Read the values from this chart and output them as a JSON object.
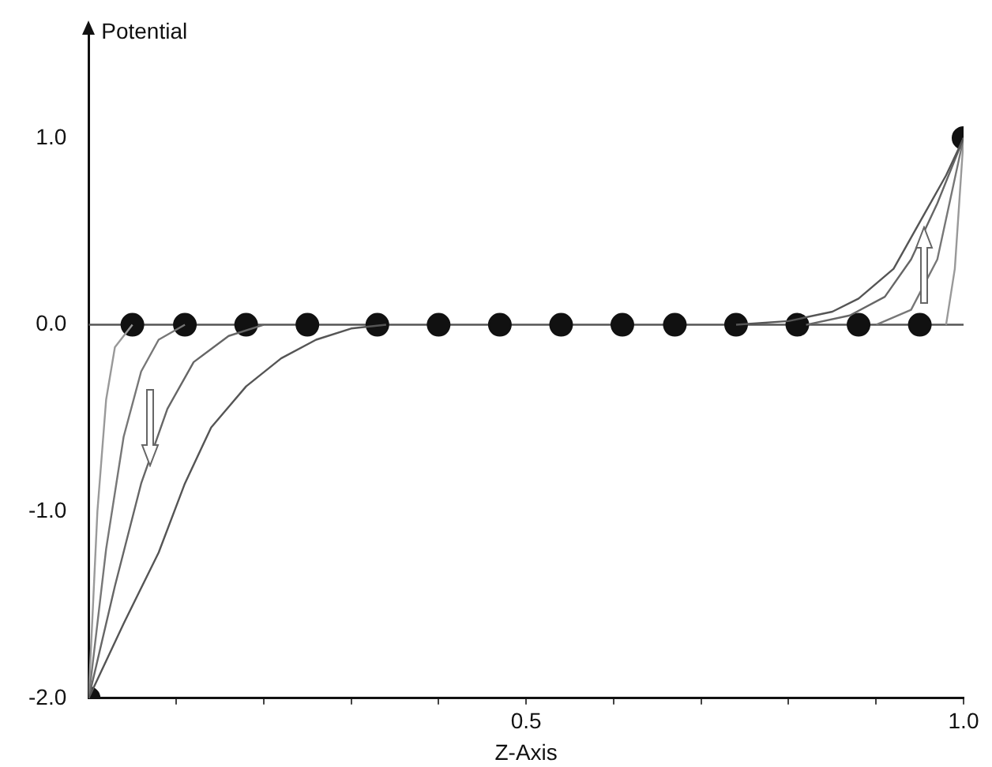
{
  "chart_data": {
    "type": "line",
    "xlabel": "Z-Axis",
    "ylabel": "Potential",
    "xlim": [
      0,
      1
    ],
    "ylim": [
      -2,
      1.55
    ],
    "xticks": [
      {
        "value": 0.1,
        "label": null
      },
      {
        "value": 0.2,
        "label": null
      },
      {
        "value": 0.3,
        "label": null
      },
      {
        "value": 0.4,
        "label": null
      },
      {
        "value": 0.5,
        "label": "0.5"
      },
      {
        "value": 0.6,
        "label": null
      },
      {
        "value": 0.7,
        "label": null
      },
      {
        "value": 0.8,
        "label": null
      },
      {
        "value": 0.9,
        "label": null
      },
      {
        "value": 1,
        "label": "1.0"
      }
    ],
    "yticks": [
      {
        "value": -2,
        "label": "-2.0"
      },
      {
        "value": -1,
        "label": "-1.0"
      },
      {
        "value": 0,
        "label": "0.0"
      },
      {
        "value": 1,
        "label": "1.0"
      }
    ],
    "grid": false,
    "legend": false,
    "line_style": "solid",
    "ref_lines": [
      {
        "axis": "y",
        "value": 0,
        "color": "#555555"
      }
    ],
    "series": [
      {
        "color": "#555555",
        "x": [
          0,
          0.04,
          0.08,
          0.11,
          0.14,
          0.18,
          0.22,
          0.26,
          0.3,
          0.34
        ],
        "values": [
          -2,
          -1.6,
          -1.22,
          -0.85,
          -0.55,
          -0.33,
          -0.18,
          -0.08,
          -0.02,
          0
        ]
      },
      {
        "color": "#666666",
        "x": [
          0,
          0.03,
          0.06,
          0.09,
          0.12,
          0.16,
          0.2
        ],
        "values": [
          -2,
          -1.4,
          -0.85,
          -0.45,
          -0.2,
          -0.06,
          0
        ]
      },
      {
        "color": "#777777",
        "x": [
          0,
          0.02,
          0.04,
          0.06,
          0.08,
          0.11
        ],
        "values": [
          -2,
          -1.2,
          -0.6,
          -0.25,
          -0.08,
          0
        ]
      },
      {
        "color": "#999999",
        "x": [
          0,
          0.01,
          0.02,
          0.03,
          0.05
        ],
        "values": [
          -2,
          -1,
          -0.4,
          -0.12,
          0
        ]
      },
      {
        "color": "#555555",
        "x": [
          0.74,
          0.8,
          0.85,
          0.88,
          0.92,
          0.95,
          0.98,
          1
        ],
        "values": [
          0,
          0.02,
          0.07,
          0.14,
          0.3,
          0.55,
          0.8,
          1
        ]
      },
      {
        "color": "#666666",
        "x": [
          0.82,
          0.87,
          0.91,
          0.94,
          0.97,
          1
        ],
        "values": [
          0,
          0.05,
          0.15,
          0.35,
          0.65,
          1
        ]
      },
      {
        "color": "#777777",
        "x": [
          0.9,
          0.94,
          0.97,
          1
        ],
        "values": [
          0,
          0.08,
          0.35,
          1
        ]
      },
      {
        "color": "#999999",
        "x": [
          0.98,
          0.99,
          1
        ],
        "values": [
          0,
          0.3,
          1
        ]
      },
      {
        "type": "scatter",
        "color": "#111111",
        "marker": "circle",
        "x": [
          0,
          0.05,
          0.11,
          0.18,
          0.25,
          0.33,
          0.4,
          0.47,
          0.54,
          0.61,
          0.67,
          0.74,
          0.81,
          0.88,
          0.95,
          1
        ],
        "values": [
          -2,
          0,
          0,
          0,
          0,
          0,
          0,
          0,
          0,
          0,
          0,
          0,
          0,
          0,
          0,
          1
        ]
      }
    ]
  }
}
